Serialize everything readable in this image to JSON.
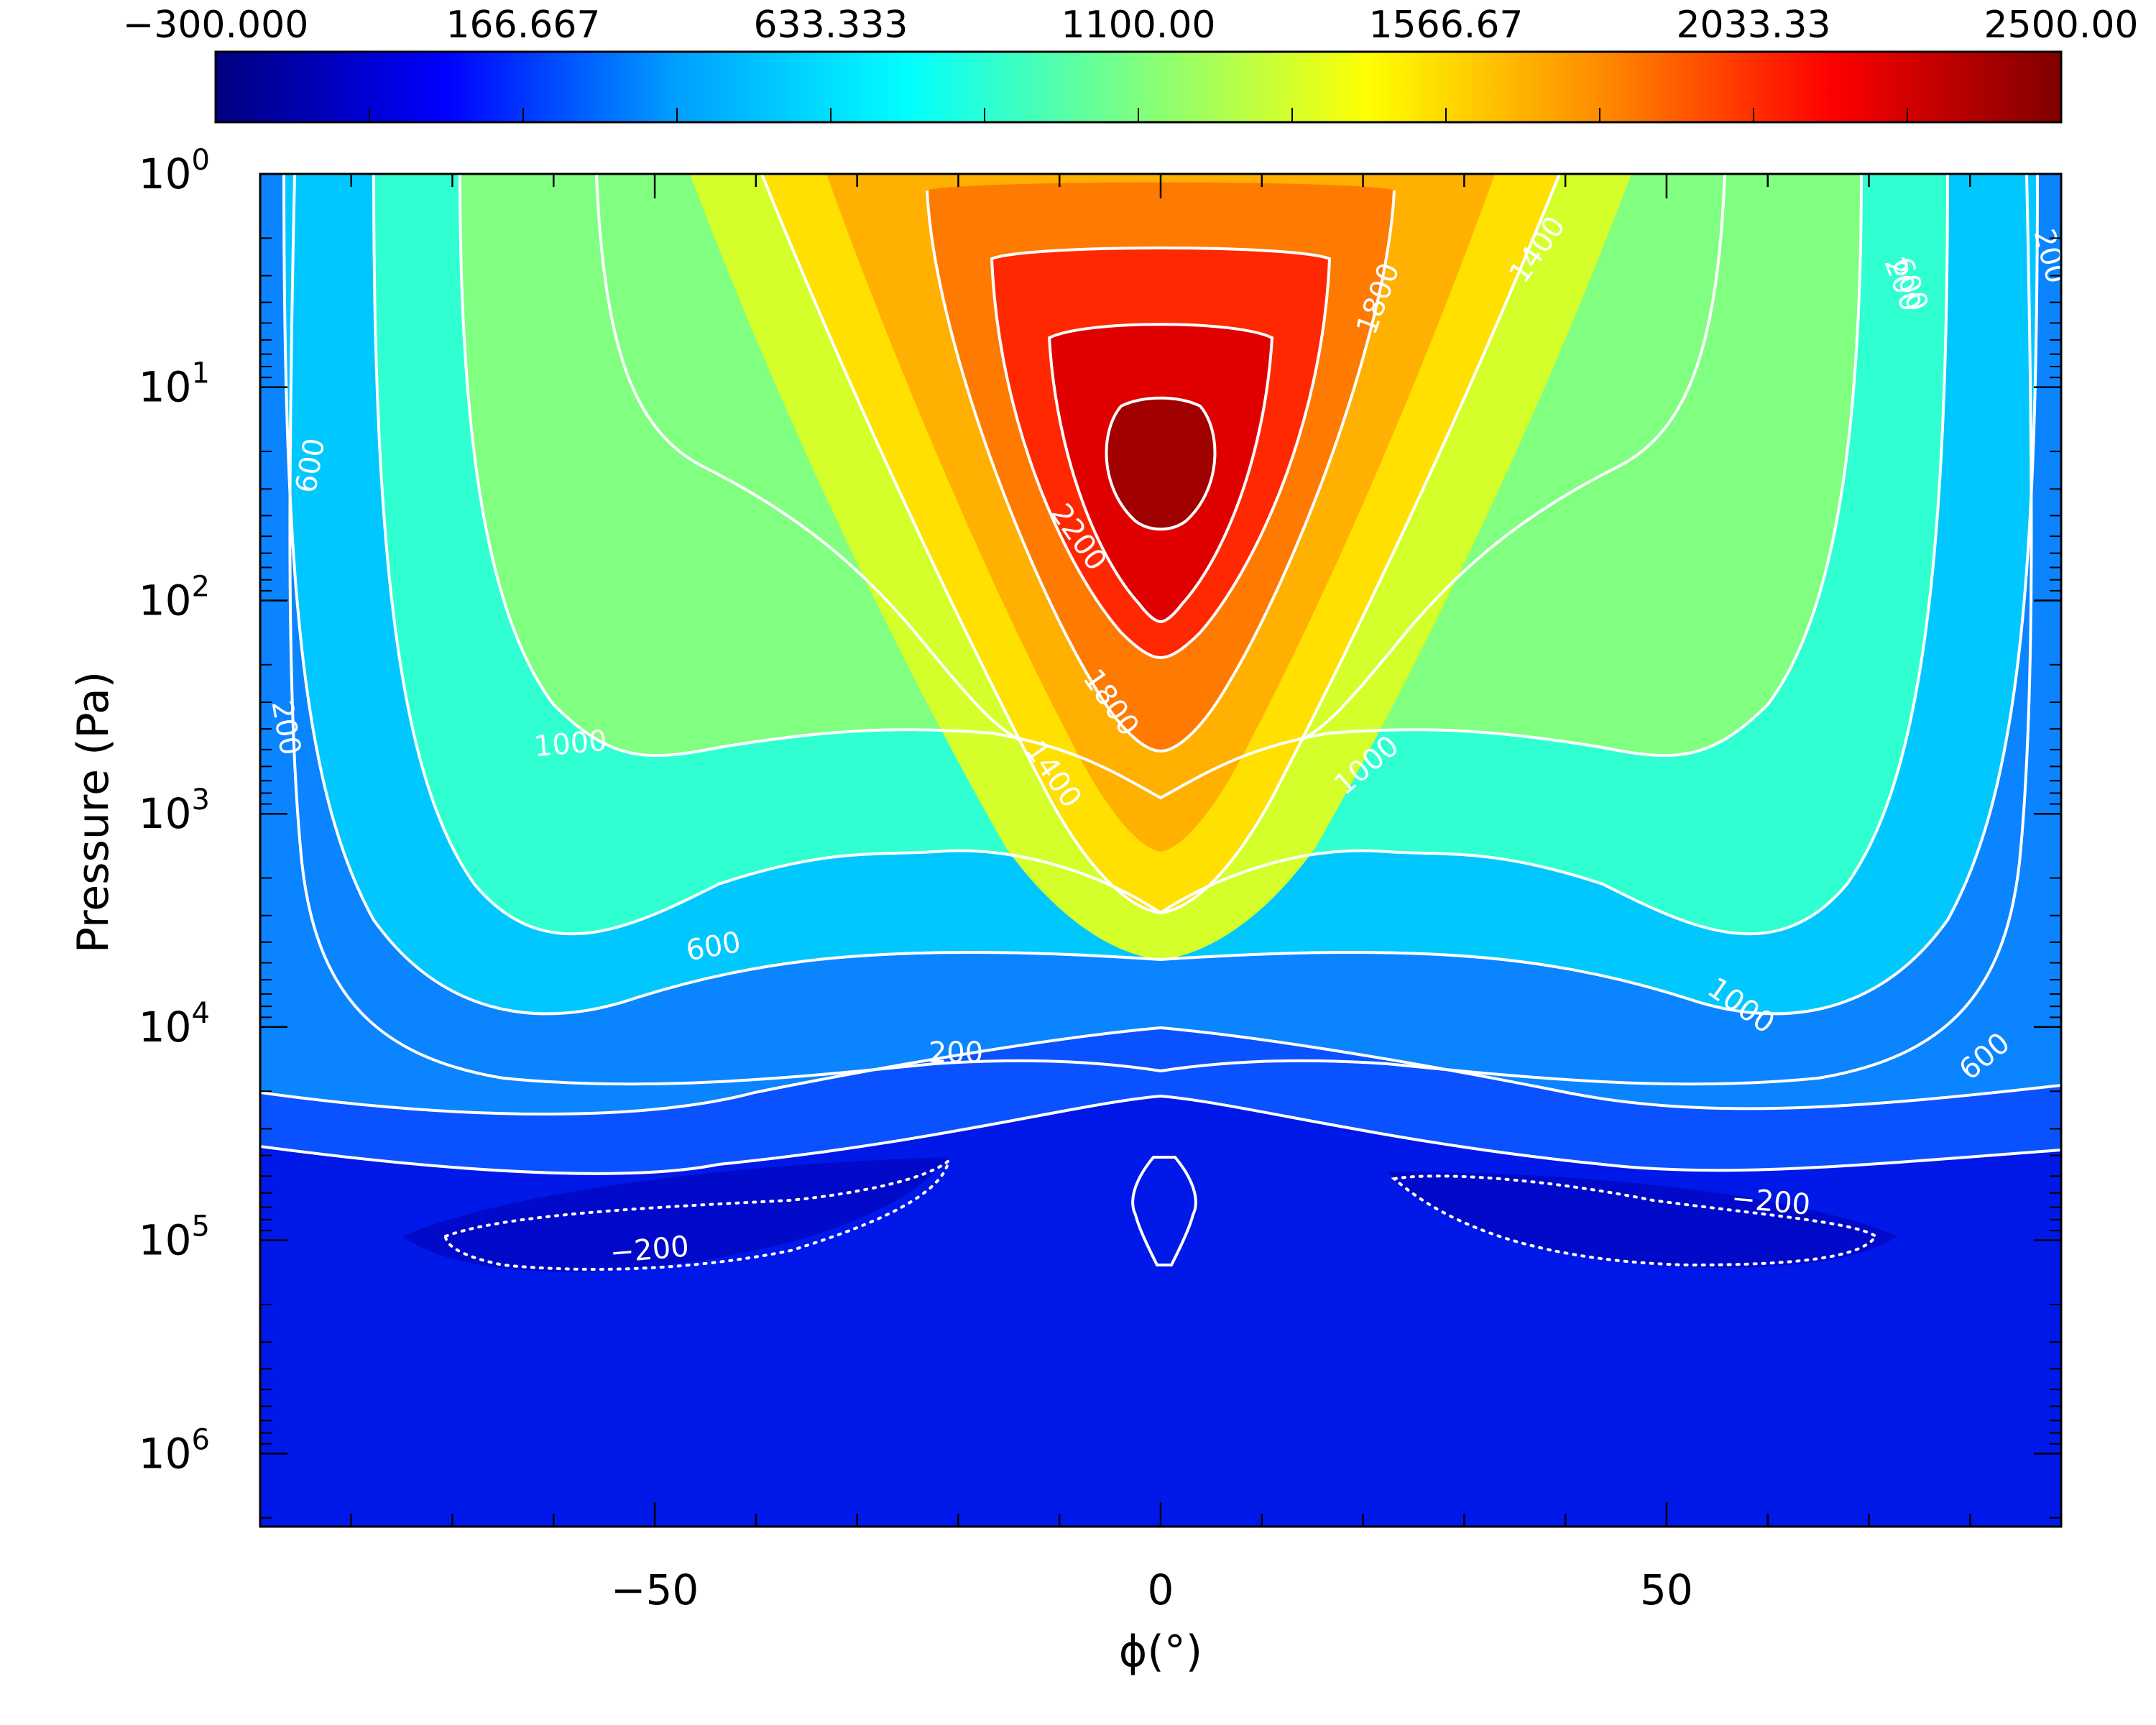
{
  "chart_data": {
    "type": "heatmap",
    "colorbar": {
      "tick_labels": [
        "−300.000",
        "166.667",
        "633.333",
        "1100.00",
        "1566.67",
        "2033.33",
        "2500.00"
      ],
      "range": [
        -300,
        2500
      ],
      "colors": [
        "#00007f",
        "#0000ff",
        "#00a0ff",
        "#00ffff",
        "#7fff7f",
        "#ffff00",
        "#ff8c00",
        "#ff0000",
        "#7f0000"
      ]
    },
    "x_axis": {
      "label": "ϕ(°)",
      "range": [
        -89,
        89
      ],
      "ticks": [
        -50,
        0,
        50
      ],
      "tick_labels": [
        "−50",
        "0",
        "50"
      ]
    },
    "y_axis": {
      "label": "Pressure (Pa)",
      "scale": "log",
      "range": [
        1,
        2200000
      ],
      "ticks": [
        1,
        10,
        100,
        1000,
        10000,
        100000,
        1000000
      ],
      "tick_labels": [
        {
          "base": "10",
          "exp": "0"
        },
        {
          "base": "10",
          "exp": "1"
        },
        {
          "base": "10",
          "exp": "2"
        },
        {
          "base": "10",
          "exp": "3"
        },
        {
          "base": "10",
          "exp": "4"
        },
        {
          "base": "10",
          "exp": "5"
        },
        {
          "base": "10",
          "exp": "6"
        }
      ]
    },
    "contour_levels": [
      -200,
      200,
      600,
      1000,
      1400,
      1800,
      2200
    ],
    "contour_labels": [
      "600",
      "200",
      "1000",
      "1400",
      "1800",
      "2200",
      "1800",
      "1400",
      "1000",
      "600",
      "200",
      "600",
      "200",
      "1000",
      "600",
      "200",
      "−200",
      "−200",
      "1000",
      "600",
      "200"
    ],
    "field_description_values": {
      "peak_value": 2450,
      "peak_location": [
        0,
        20
      ],
      "negative_minimum": -300,
      "negative_locations": [
        [
          -45,
          100000
        ],
        [
          45,
          100000
        ]
      ]
    }
  }
}
